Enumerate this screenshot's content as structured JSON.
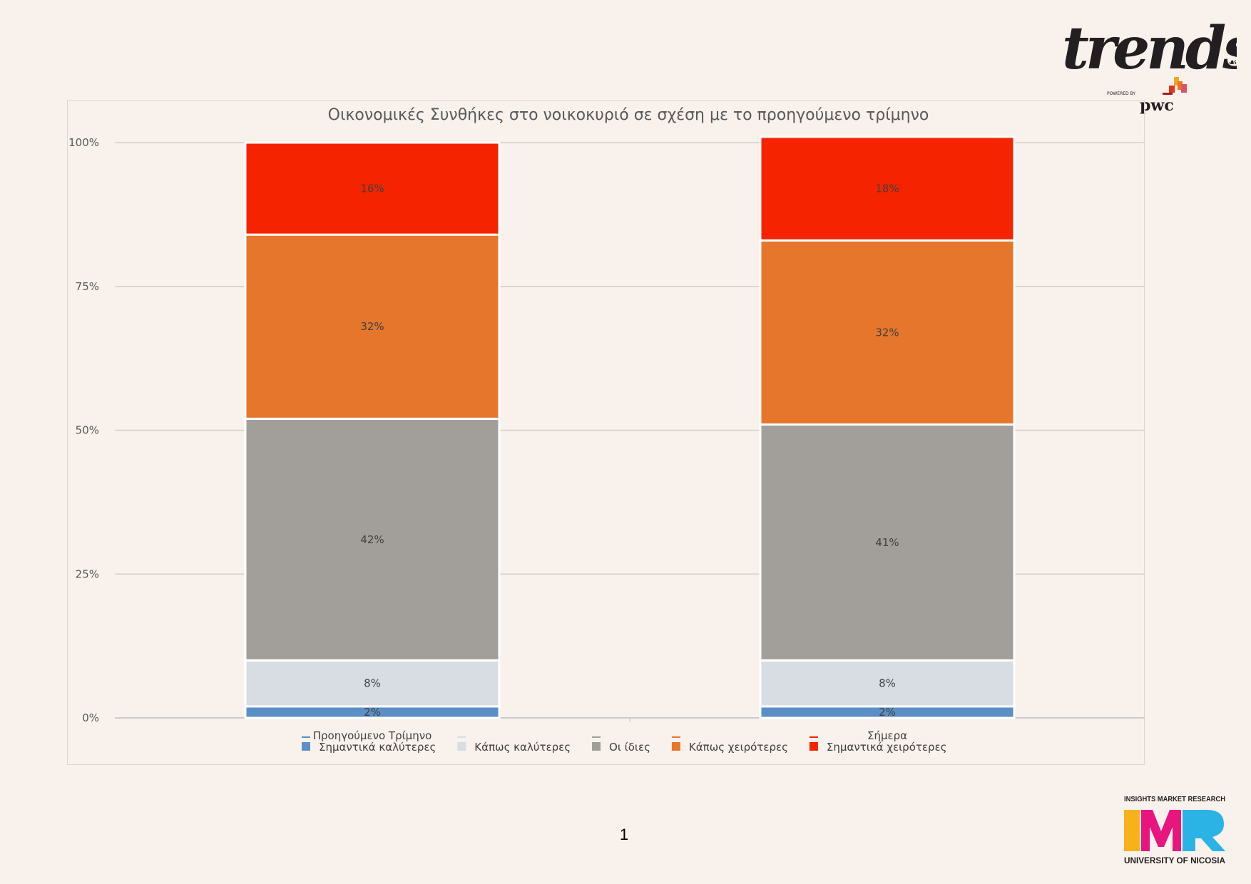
{
  "page": {
    "number": "1"
  },
  "logos": {
    "trends": {
      "wordmark": "trends",
      "powered_by": "POWERED BY",
      "partner": "pwc"
    },
    "imr": {
      "top_text": "INSIGHTS MARKET RESEARCH",
      "wordmark": "IMR",
      "bottom_text": "UNIVERSITY OF NICOSIA",
      "colors": [
        "#f7b21b",
        "#e8157f",
        "#2bb3e6"
      ]
    }
  },
  "chart_data": {
    "type": "bar",
    "stacked": true,
    "title": "Οικονομικές Συνθήκες στο νοικοκυριό σε σχέση με το προηγούμενο τρίμηνο",
    "categories": [
      "Προηγούμενο Τρίμηνο",
      "Σήμερα"
    ],
    "y_ticks": [
      "0%",
      "25%",
      "50%",
      "75%",
      "100%"
    ],
    "ylim": [
      0,
      100
    ],
    "grid": true,
    "legend_position": "bottom",
    "series": [
      {
        "name": "Σημαντικά καλύτερες",
        "values": [
          2,
          2
        ],
        "labels": [
          "2%",
          "2%"
        ],
        "color": "#5b8fc6"
      },
      {
        "name": "Κάπως καλύτερες",
        "values": [
          8,
          8
        ],
        "labels": [
          "8%",
          "8%"
        ],
        "color": "#d7dde3"
      },
      {
        "name": "Οι ίδιες",
        "values": [
          42,
          41
        ],
        "labels": [
          "42%",
          "41%"
        ],
        "color": "#a29f9a"
      },
      {
        "name": "Κάπως χειρότερες",
        "values": [
          32,
          32
        ],
        "labels": [
          "32%",
          "32%"
        ],
        "color": "#e5762c"
      },
      {
        "name": "Σημαντικά χειρότερες",
        "values": [
          16,
          18
        ],
        "labels": [
          "16%",
          "18%"
        ],
        "color": "#f52300"
      }
    ]
  }
}
